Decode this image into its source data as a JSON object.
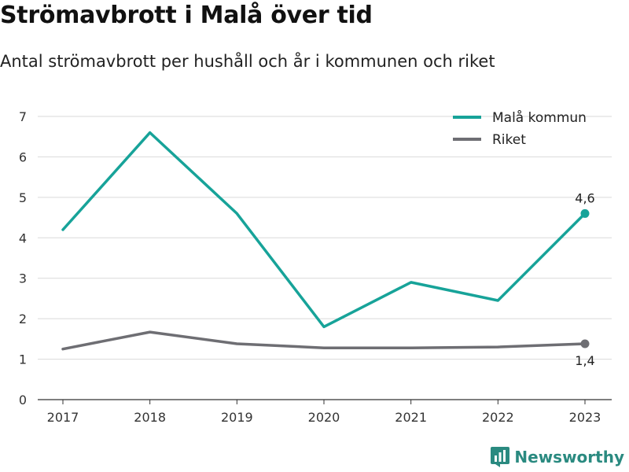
{
  "title": "Strömavbrott i Malå över tid",
  "subtitle": "Antal strömavbrott per hushåll och år i kommunen och riket",
  "brand": "Newsworthy",
  "chart_data": {
    "type": "line",
    "x": [
      "2017",
      "2018",
      "2019",
      "2020",
      "2021",
      "2022",
      "2023"
    ],
    "ylim": [
      0,
      7
    ],
    "yticks": [
      "0",
      "1",
      "2",
      "3",
      "4",
      "5",
      "6",
      "7"
    ],
    "grid": true,
    "legend_position": "top-right",
    "series": [
      {
        "name": "Malå kommun",
        "color": "#17a399",
        "values": [
          4.2,
          6.6,
          4.6,
          1.8,
          2.9,
          2.45,
          4.6
        ],
        "end_label": "4,6"
      },
      {
        "name": "Riket",
        "color": "#6e6e73",
        "values": [
          1.25,
          1.67,
          1.38,
          1.28,
          1.28,
          1.3,
          1.38
        ],
        "end_label": "1,4"
      }
    ]
  }
}
